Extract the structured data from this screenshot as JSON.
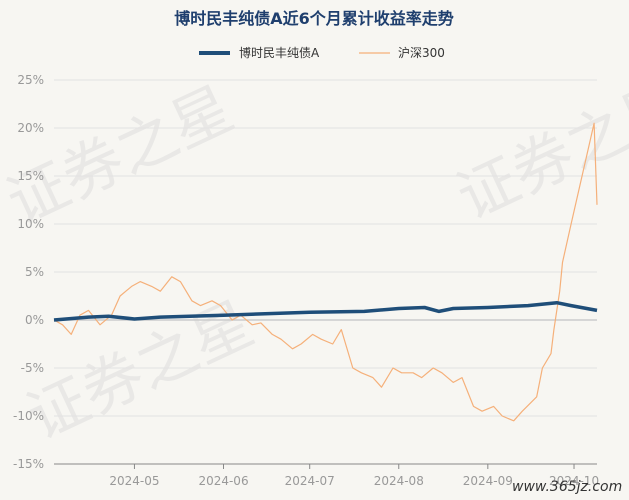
{
  "chart_data": {
    "type": "line",
    "title": "博时民丰纯债A近6个月累计收益率走势",
    "series": [
      {
        "name": "博时民丰纯债A",
        "color": "#1f4e79",
        "x": [
          "2024-04-03",
          "2024-04-15",
          "2024-04-22",
          "2024-05-01",
          "2024-05-10",
          "2024-06-01",
          "2024-07-01",
          "2024-07-20",
          "2024-08-01",
          "2024-08-10",
          "2024-08-15",
          "2024-08-20",
          "2024-09-01",
          "2024-09-15",
          "2024-09-25",
          "2024-09-30",
          "2024-10-09"
        ],
        "values": [
          0.0,
          0.3,
          0.4,
          0.1,
          0.3,
          0.5,
          0.8,
          0.9,
          1.2,
          1.3,
          0.9,
          1.2,
          1.3,
          1.5,
          1.8,
          1.5,
          1.0
        ]
      },
      {
        "name": "沪深300",
        "color": "#f5b07a",
        "x": [
          "2024-04-03",
          "2024-04-06",
          "2024-04-09",
          "2024-04-12",
          "2024-04-15",
          "2024-04-19",
          "2024-04-23",
          "2024-04-26",
          "2024-04-30",
          "2024-05-03",
          "2024-05-07",
          "2024-05-10",
          "2024-05-14",
          "2024-05-17",
          "2024-05-21",
          "2024-05-24",
          "2024-05-28",
          "2024-05-31",
          "2024-06-04",
          "2024-06-07",
          "2024-06-11",
          "2024-06-14",
          "2024-06-18",
          "2024-06-21",
          "2024-06-25",
          "2024-06-28",
          "2024-07-02",
          "2024-07-05",
          "2024-07-09",
          "2024-07-12",
          "2024-07-16",
          "2024-07-19",
          "2024-07-23",
          "2024-07-26",
          "2024-07-30",
          "2024-08-02",
          "2024-08-06",
          "2024-08-09",
          "2024-08-13",
          "2024-08-16",
          "2024-08-20",
          "2024-08-23",
          "2024-08-27",
          "2024-08-30",
          "2024-09-03",
          "2024-09-06",
          "2024-09-10",
          "2024-09-13",
          "2024-09-18",
          "2024-09-20",
          "2024-09-23",
          "2024-09-24",
          "2024-09-26",
          "2024-09-27",
          "2024-09-30",
          "2024-10-08",
          "2024-10-09"
        ],
        "values": [
          0.0,
          -0.5,
          -1.5,
          0.5,
          1.0,
          -0.5,
          0.5,
          2.5,
          3.5,
          4.0,
          3.5,
          3.0,
          4.5,
          4.0,
          2.0,
          1.5,
          2.0,
          1.5,
          0.0,
          0.5,
          -0.5,
          -0.3,
          -1.5,
          -2.0,
          -3.0,
          -2.5,
          -1.5,
          -2.0,
          -2.5,
          -1.0,
          -5.0,
          -5.5,
          -6.0,
          -7.0,
          -5.0,
          -5.5,
          -5.5,
          -6.0,
          -5.0,
          -5.5,
          -6.5,
          -6.0,
          -9.0,
          -9.5,
          -9.0,
          -10.0,
          -10.5,
          -9.5,
          -8.0,
          -5.0,
          -3.5,
          -1.0,
          3.0,
          6.0,
          10.0,
          20.5,
          12.0
        ]
      }
    ],
    "ylim": [
      -15,
      25
    ],
    "yticks": [
      25,
      20,
      15,
      10,
      5,
      0,
      -5,
      -10,
      -15
    ],
    "ytick_labels": [
      "25%",
      "20%",
      "15%",
      "10%",
      "5%",
      "0%",
      "-5%",
      "-10%",
      "-15%"
    ],
    "xlim": [
      "2024-04-03",
      "2024-10-09"
    ],
    "xticks": [
      "2024-05-01",
      "2024-06-01",
      "2024-07-01",
      "2024-08-01",
      "2024-09-01",
      "2024-10-01"
    ],
    "xtick_labels": [
      "2024-05",
      "2024-06",
      "2024-07",
      "2024-08",
      "2024-09",
      "2024-10"
    ],
    "grid": true,
    "legend_position": "top-center"
  },
  "watermark": {
    "text_1": "证券之星",
    "text_2": "证券之星",
    "text_3": "证券之星",
    "site": "www.365jz.com"
  }
}
